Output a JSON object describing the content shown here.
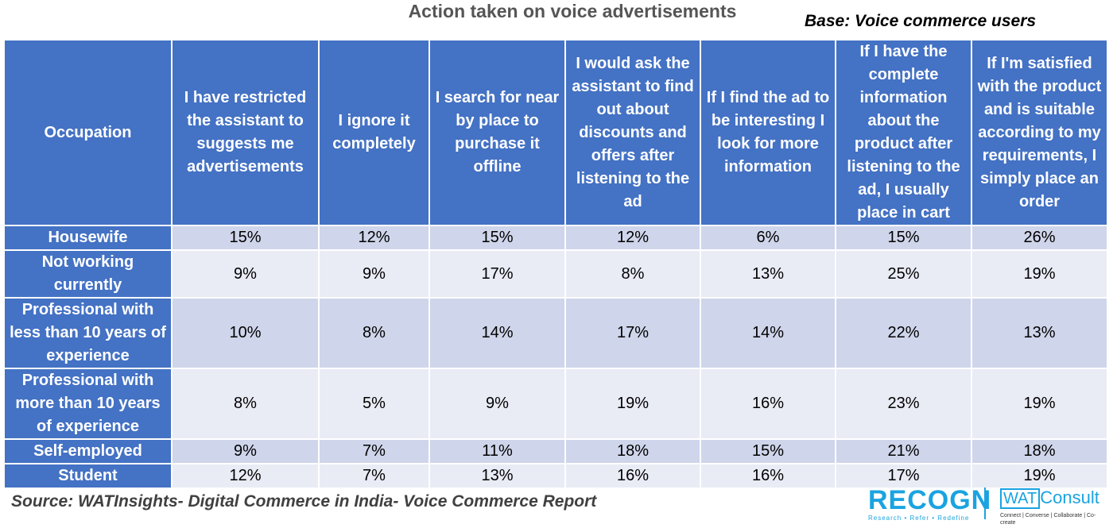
{
  "chart_data": {
    "type": "table",
    "title": "Action taken on voice advertisements",
    "subtitle": "Base: Voice commerce users",
    "columns": [
      "Occupation",
      "I have restricted the assistant to suggests me advertisements",
      "I ignore it completely",
      "I search for near by place to purchase it offline",
      "I would ask the assistant to find out about discounts and offers after listening to the ad",
      "If I find the ad to be interesting I look for more information",
      "If I have the complete information about the product after listening to the ad, I usually place in cart",
      "If I'm satisfied with the product and is suitable according to my requirements, I simply place an order"
    ],
    "rows": [
      {
        "label": "Housewife",
        "values": [
          "15%",
          "12%",
          "15%",
          "12%",
          "6%",
          "15%",
          "26%"
        ]
      },
      {
        "label": "Not working currently",
        "values": [
          "9%",
          "9%",
          "17%",
          "8%",
          "13%",
          "25%",
          "19%"
        ]
      },
      {
        "label": "Professional with less than 10 years of experience",
        "values": [
          "10%",
          "8%",
          "14%",
          "17%",
          "14%",
          "22%",
          "13%"
        ]
      },
      {
        "label": "Professional with more than 10 years of experience",
        "values": [
          "8%",
          "5%",
          "9%",
          "19%",
          "16%",
          "23%",
          "19%"
        ]
      },
      {
        "label": "Self-employed",
        "values": [
          "9%",
          "7%",
          "11%",
          "18%",
          "15%",
          "21%",
          "18%"
        ]
      },
      {
        "label": "Student",
        "values": [
          "12%",
          "7%",
          "13%",
          "16%",
          "16%",
          "17%",
          "19%"
        ]
      }
    ],
    "source": "Source: WATInsights- Digital Commerce in India- Voice Commerce Report"
  },
  "logos": {
    "recogn": {
      "word": "RECOGN",
      "tagline": "Research • Refer • Redefine"
    },
    "watconsult": {
      "box": "WAT",
      "word": "Consult",
      "tagline": "Connect | Converse | Collaborate | Co-create"
    }
  },
  "colors": {
    "header_fill": "#4472c4",
    "row_fill_dark": "#cfd5ea",
    "row_fill_light": "#e9ebf5",
    "logo_blue": "#1aa3e0"
  }
}
